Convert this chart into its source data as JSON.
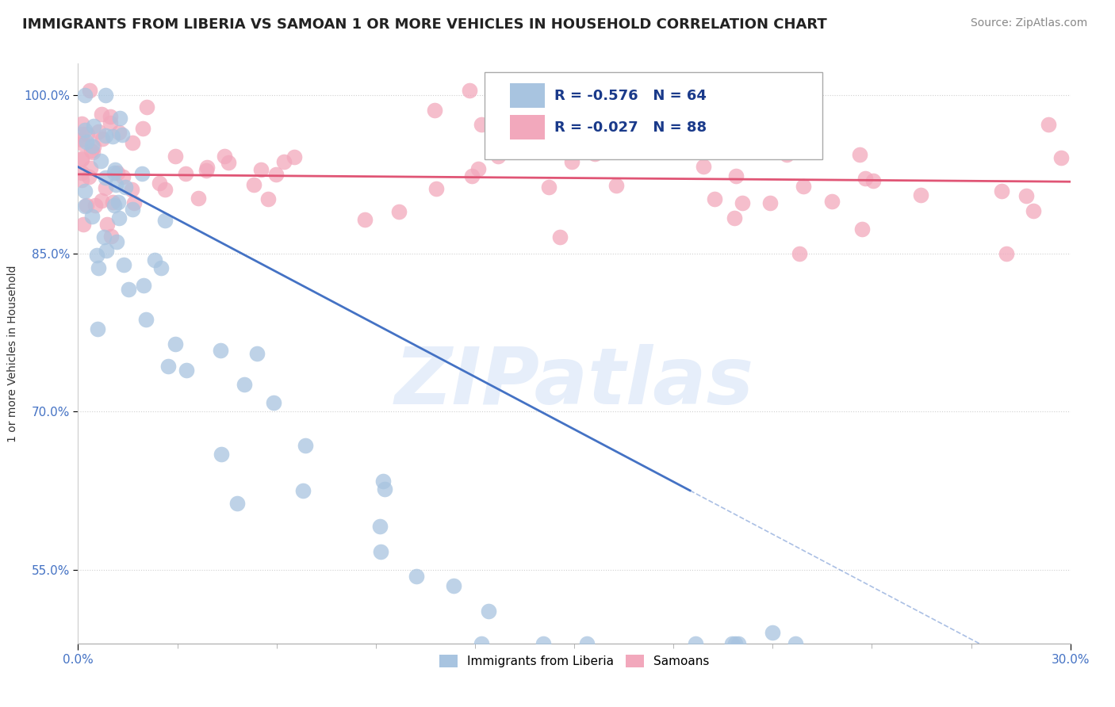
{
  "title": "IMMIGRANTS FROM LIBERIA VS SAMOAN 1 OR MORE VEHICLES IN HOUSEHOLD CORRELATION CHART",
  "source": "Source: ZipAtlas.com",
  "ylabel": "1 or more Vehicles in Household",
  "xlim": [
    0.0,
    0.3
  ],
  "ylim": [
    0.48,
    1.03
  ],
  "x_tick_labels": [
    "0.0%",
    "30.0%"
  ],
  "y_ticks": [
    1.0,
    0.85,
    0.7,
    0.55
  ],
  "y_tick_labels": [
    "100.0%",
    "85.0%",
    "70.0%",
    "55.0%"
  ],
  "legend_r_liberia": "R = -0.576",
  "legend_n_liberia": "N = 64",
  "legend_r_samoan": "R = -0.027",
  "legend_n_samoan": "N = 88",
  "color_liberia": "#a8c4e0",
  "color_samoan": "#f2a8bc",
  "line_color_liberia": "#4472c4",
  "line_color_samoan": "#e05575",
  "watermark": "ZIPatlas",
  "background_color": "#ffffff",
  "grid_color": "#d0d0d0",
  "title_fontsize": 13,
  "axis_label_fontsize": 10,
  "tick_fontsize": 11,
  "source_fontsize": 10
}
